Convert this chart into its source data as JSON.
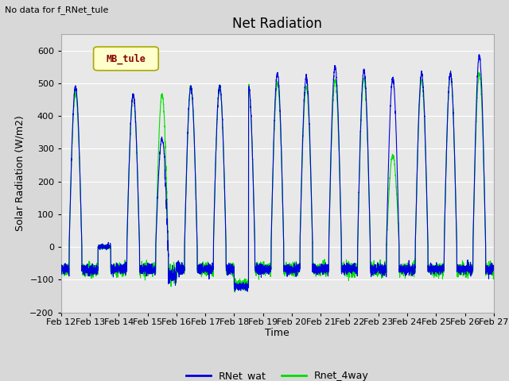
{
  "title": "Net Radiation",
  "ylabel": "Solar Radiation (W/m2)",
  "xlabel": "Time",
  "top_left_text": "No data for f_RNet_tule",
  "legend_box_text": "MB_tule",
  "ylim": [
    -200,
    650
  ],
  "yticks": [
    -200,
    -100,
    0,
    100,
    200,
    300,
    400,
    500,
    600
  ],
  "x_labels": [
    "Feb 12",
    "Feb 13",
    "Feb 14",
    "Feb 15",
    "Feb 16",
    "Feb 17",
    "Feb 18",
    "Feb 19",
    "Feb 20",
    "Feb 21",
    "Feb 22",
    "Feb 23",
    "Feb 24",
    "Feb 25",
    "Feb 26",
    "Feb 27"
  ],
  "series1_color": "#0000dd",
  "series2_color": "#00dd00",
  "series1_label": "RNet_wat",
  "series2_label": "Rnet_4way",
  "background_color": "#d8d8d8",
  "plot_bg_color": "#e8e8e8",
  "n_days": 15,
  "points_per_day": 288,
  "peaks_blue": [
    490,
    0,
    465,
    330,
    490,
    490,
    490,
    530,
    520,
    550,
    540,
    515,
    530,
    530,
    585
  ],
  "peaks_green": [
    470,
    0,
    465,
    465,
    490,
    490,
    490,
    500,
    490,
    510,
    515,
    280,
    510,
    530,
    530
  ],
  "night_blue": -68,
  "night_green": -68
}
